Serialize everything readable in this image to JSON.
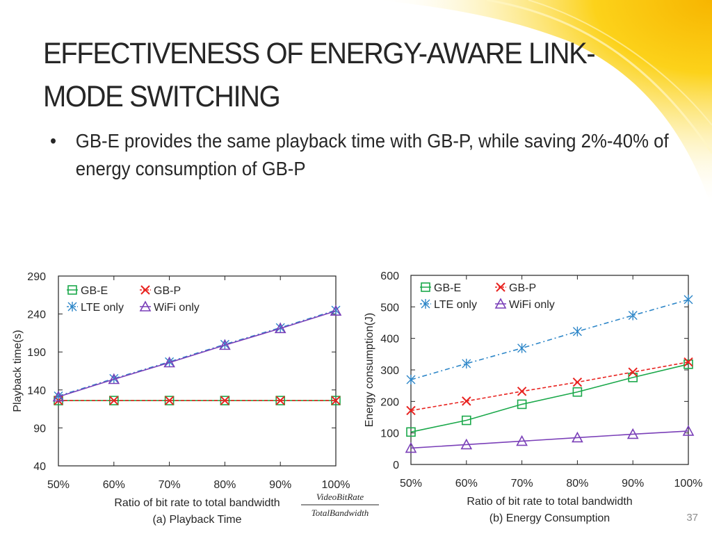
{
  "slide": {
    "title": "EFFECTIVENESS OF ENERGY-AWARE LINK-MODE SWITCHING",
    "title_line1": "EFFECTIVENESS OF ENERGY-AWARE LINK-",
    "title_line2": "MODE SWITCHING",
    "bullet_symbol": "•",
    "bullet_text": "GB-E provides the same playback time with GB-P, while saving 2%-40% of energy consumption of GB-P",
    "page_number": "37",
    "formula_numerator": "VideoBitRate",
    "formula_denominator": "TotalBandwidth",
    "colors": {
      "gbe": "#1aa84a",
      "gbp": "#e8221f",
      "lte": "#2d86c8",
      "wifi": "#7a3fb8",
      "accent": "#f5c400"
    }
  },
  "chart_data": [
    {
      "type": "line",
      "title": "(a) Playback Time",
      "xlabel": "Ratio of bit rate to total bandwidth",
      "ylabel": "Playback time(s)",
      "categories": [
        "50%",
        "60%",
        "70%",
        "80%",
        "90%",
        "100%"
      ],
      "ylim": [
        40,
        290
      ],
      "yticks": [
        40,
        90,
        140,
        190,
        240,
        290
      ],
      "legend": "top-left",
      "grid": false,
      "series": [
        {
          "name": "GB-E",
          "key": "gbe",
          "values": [
            126,
            126,
            126,
            126,
            126,
            126
          ]
        },
        {
          "name": "GB-P",
          "key": "gbp",
          "values": [
            126,
            126,
            126,
            126,
            126,
            126
          ]
        },
        {
          "name": "LTE only",
          "key": "lte",
          "values": [
            132,
            155,
            177,
            200,
            222,
            245
          ]
        },
        {
          "name": "WiFi only",
          "key": "wifi",
          "values": [
            131,
            154,
            176,
            199,
            221,
            244
          ]
        }
      ]
    },
    {
      "type": "line",
      "title": "(b) Energy Consumption",
      "xlabel": "Ratio of bit rate to total bandwidth",
      "ylabel": "Energy consumption(J)",
      "categories": [
        "50%",
        "60%",
        "70%",
        "80%",
        "90%",
        "100%"
      ],
      "ylim": [
        0,
        600
      ],
      "yticks": [
        0,
        100,
        200,
        300,
        400,
        500,
        600
      ],
      "legend": "top-left",
      "grid": false,
      "series": [
        {
          "name": "GB-E",
          "key": "gbe",
          "values": [
            103,
            140,
            191,
            230,
            276,
            318
          ]
        },
        {
          "name": "GB-P",
          "key": "gbp",
          "values": [
            171,
            201,
            232,
            261,
            293,
            325
          ]
        },
        {
          "name": "LTE only",
          "key": "lte",
          "values": [
            269,
            320,
            369,
            422,
            473,
            523
          ]
        },
        {
          "name": "WiFi only",
          "key": "wifi",
          "values": [
            52,
            63,
            74,
            85,
            96,
            106
          ]
        }
      ]
    }
  ]
}
